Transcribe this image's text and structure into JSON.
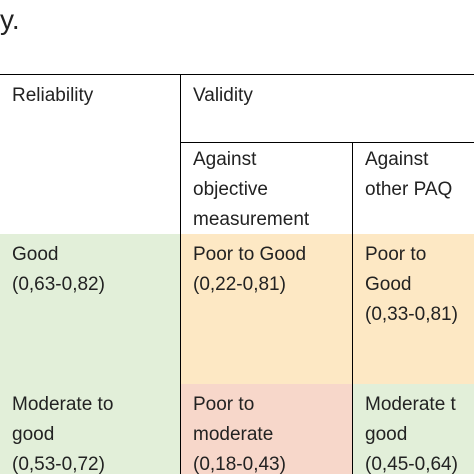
{
  "fragment_text": "y.",
  "table": {
    "headers": {
      "reliability": "Reliability",
      "validity": "Validity",
      "against_objective": "Against\nobjective\nmeasurement",
      "against_paq": "Against\nother PAQ"
    },
    "rows": [
      {
        "reliability": "Good\n(0,63-0,82)",
        "objective": "Poor to Good\n(0,22-0,81)",
        "paq": "Poor to\nGood\n(0,33-0,81)"
      },
      {
        "reliability": "Moderate to\ngood\n(0,53-0,72)",
        "objective": "Poor to\nmoderate\n(0,18-0,43)",
        "paq": "Moderate t\ngood\n(0,45-0,64)"
      }
    ]
  },
  "colors": {
    "green": "#e2efd9",
    "orange": "#fde8c4",
    "red": "#f7d7ca"
  }
}
